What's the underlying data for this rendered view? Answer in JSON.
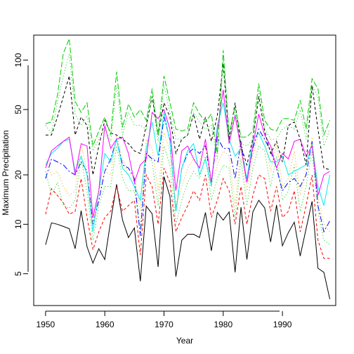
{
  "chart_data": {
    "type": "line",
    "title": "",
    "xlabel": "Year",
    "ylabel": "Maximum Precipitation",
    "y_scale": "log",
    "xlim": [
      1948,
      1999
    ],
    "ylim": [
      3.2,
      142
    ],
    "x_ticks": [
      1950,
      1960,
      1970,
      1980,
      1990
    ],
    "y_ticks": [
      5,
      10,
      20,
      50,
      100
    ],
    "grid": false,
    "legend": "none",
    "x": [
      1950,
      1951,
      1952,
      1953,
      1954,
      1955,
      1956,
      1957,
      1958,
      1959,
      1960,
      1961,
      1962,
      1963,
      1964,
      1965,
      1966,
      1967,
      1968,
      1969,
      1970,
      1971,
      1972,
      1973,
      1974,
      1975,
      1976,
      1977,
      1978,
      1979,
      1980,
      1981,
      1982,
      1983,
      1984,
      1985,
      1986,
      1987,
      1988,
      1989,
      1990,
      1991,
      1992,
      1993,
      1994,
      1995,
      1996,
      1997,
      1998
    ],
    "series": [
      {
        "color": "#000000",
        "dash": "solid",
        "values": [
          7.5,
          10.2,
          10.0,
          9.7,
          9.4,
          7.1,
          12.1,
          7.3,
          5.8,
          7.1,
          6.1,
          10.5,
          17.5,
          10.6,
          8.3,
          9.5,
          4.5,
          12.9,
          11.6,
          5.5,
          19.5,
          14.8,
          4.8,
          8.0,
          8.7,
          8.7,
          8.3,
          11.8,
          6.9,
          11.8,
          10.6,
          11.9,
          5.1,
          12.7,
          6.1,
          11.9,
          14.0,
          12.6,
          7.8,
          13.1,
          7.4,
          8.9,
          10.3,
          6.4,
          9.4,
          13.8,
          5.4,
          5.1,
          3.5
        ]
      },
      {
        "color": "#ff0000",
        "dash": "4 3",
        "values": [
          11.5,
          16.5,
          15.0,
          13.5,
          11.5,
          12.0,
          19.0,
          11.0,
          7.0,
          9.0,
          11.0,
          12.0,
          17.0,
          12.0,
          13.0,
          14.0,
          6.5,
          20.0,
          17.0,
          10.0,
          22.0,
          18.0,
          9.0,
          11.0,
          13.0,
          16.0,
          14.0,
          20.0,
          11.0,
          14.0,
          19.0,
          16.0,
          10.0,
          17.0,
          10.0,
          15.0,
          20.0,
          19.0,
          12.0,
          17.0,
          11.0,
          12.0,
          16.0,
          9.0,
          13.0,
          20.0,
          8.0,
          6.2,
          6.2
        ]
      },
      {
        "color": "#00cd00",
        "dash": "1 3",
        "values": [
          21.0,
          15.0,
          18.0,
          13.0,
          12.5,
          14.0,
          25.0,
          16.0,
          8.0,
          13.0,
          17.0,
          17.0,
          30.0,
          19.0,
          16.0,
          16.0,
          9.5,
          28.0,
          24.0,
          13.0,
          30.0,
          23.0,
          10.0,
          14.0,
          18.0,
          21.0,
          19.0,
          26.0,
          14.0,
          19.0,
          23.0,
          22.0,
          11.0,
          25.0,
          13.0,
          22.0,
          30.0,
          28.0,
          17.0,
          26.0,
          14.0,
          16.0,
          23.0,
          12.0,
          17.0,
          28.0,
          12.0,
          8.0,
          7.5
        ]
      },
      {
        "color": "#0000ff",
        "dash": "8 3 2 3",
        "values": [
          19.0,
          25.0,
          24.0,
          23.0,
          21.0,
          20.0,
          24.0,
          21.0,
          10.0,
          14.0,
          21.0,
          25.0,
          33.0,
          23.0,
          22.0,
          19.0,
          8.5,
          27.0,
          25.0,
          24.0,
          45.0,
          33.0,
          12.0,
          22.0,
          27.0,
          29.0,
          27.0,
          30.0,
          18.0,
          34.0,
          29.0,
          29.0,
          19.0,
          32.0,
          18.0,
          29.0,
          38.0,
          33.0,
          28.0,
          22.0,
          16.0,
          18.0,
          19.0,
          17.0,
          20.0,
          32.0,
          13.0,
          9.0,
          10.5
        ]
      },
      {
        "color": "#00eeee",
        "dash": "solid",
        "values": [
          23.0,
          27.0,
          29.0,
          32.0,
          33.0,
          21.0,
          26.0,
          20.0,
          9.0,
          16.0,
          27.0,
          24.0,
          33.0,
          22.0,
          20.0,
          17.0,
          14.0,
          29.0,
          42.0,
          26.0,
          48.0,
          32.0,
          12.0,
          22.0,
          28.0,
          31.0,
          20.0,
          25.0,
          17.0,
          40.0,
          55.0,
          33.0,
          26.0,
          29.0,
          19.0,
          33.0,
          36.0,
          30.0,
          24.0,
          24.0,
          26.0,
          20.0,
          21.0,
          22.0,
          23.0,
          31.0,
          17.0,
          13.0,
          20.0
        ]
      },
      {
        "color": "#ff00ff",
        "dash": "solid",
        "values": [
          22.0,
          28.0,
          30.0,
          32.0,
          34.0,
          20.0,
          31.0,
          30.0,
          11.0,
          16.0,
          40.0,
          29.0,
          33.0,
          34.0,
          27.0,
          18.0,
          23.0,
          25.0,
          48.0,
          44.0,
          50.0,
          38.0,
          16.0,
          28.0,
          30.0,
          25.0,
          22.0,
          33.0,
          18.0,
          37.0,
          66.0,
          31.0,
          46.0,
          29.0,
          18.0,
          30.0,
          47.0,
          35.0,
          30.0,
          22.0,
          27.0,
          25.0,
          32.0,
          33.0,
          26.0,
          30.0,
          15.0,
          20.0,
          21.0
        ]
      },
      {
        "color": "#ffa500",
        "dash": "1 3",
        "values": [
          25.0,
          20.0,
          21.0,
          17.0,
          15.0,
          16.0,
          31.0,
          21.0,
          10.0,
          16.0,
          21.0,
          20.0,
          35.0,
          25.0,
          20.0,
          20.0,
          12.0,
          33.0,
          29.0,
          16.0,
          36.0,
          28.0,
          13.0,
          17.0,
          22.0,
          25.0,
          24.0,
          31.0,
          17.0,
          23.0,
          28.0,
          26.0,
          13.0,
          30.0,
          16.0,
          26.0,
          36.0,
          33.0,
          21.0,
          31.0,
          17.0,
          19.0,
          28.0,
          15.0,
          21.0,
          34.0,
          15.0,
          10.0,
          9.0
        ]
      },
      {
        "color": "#000000",
        "dash": "4 3",
        "values": [
          35.0,
          35.0,
          45.0,
          60.0,
          80.0,
          35.0,
          45.0,
          40.0,
          20.0,
          30.0,
          43.0,
          36.0,
          35.0,
          33.0,
          31.0,
          28.0,
          27.0,
          40.0,
          60.0,
          35.0,
          55.0,
          45.0,
          27.0,
          33.0,
          35.0,
          47.0,
          33.0,
          45.0,
          32.0,
          46.0,
          95.0,
          33.0,
          55.0,
          30.0,
          23.0,
          33.0,
          60.0,
          37.0,
          27.0,
          32.0,
          24.0,
          40.0,
          42.0,
          33.0,
          23.0,
          70.0,
          38.0,
          22.0,
          21.5
        ]
      },
      {
        "color": "#00cd00",
        "dash": "8 3",
        "values": [
          41.0,
          42.0,
          61.0,
          110.0,
          135.0,
          56.0,
          48.0,
          55.0,
          30.0,
          37.0,
          45.0,
          35.0,
          85.0,
          39.0,
          54.0,
          45.0,
          50.0,
          43.0,
          67.0,
          35.0,
          80.0,
          55.0,
          38.0,
          37.0,
          38.0,
          55.0,
          47.0,
          42.0,
          47.0,
          27.0,
          115.0,
          35.0,
          52.0,
          34.0,
          34.0,
          37.0,
          72.0,
          43.0,
          38.0,
          37.0,
          44.0,
          44.0,
          43.0,
          57.0,
          38.0,
          77.0,
          67.0,
          35.0,
          43.0
        ]
      },
      {
        "color": "#00cd00",
        "dash": "1 3",
        "values": [
          40.0,
          36.0,
          55.0,
          80.0,
          110.0,
          47.0,
          40.0,
          46.0,
          28.0,
          33.0,
          38.0,
          32.0,
          70.0,
          35.0,
          48.0,
          40.0,
          40.0,
          38.0,
          60.0,
          32.0,
          70.0,
          48.0,
          33.0,
          33.0,
          35.0,
          48.0,
          42.0,
          38.0,
          40.0,
          25.0,
          100.0,
          32.0,
          48.0,
          31.0,
          30.0,
          33.0,
          65.0,
          38.0,
          33.0,
          33.0,
          38.0,
          40.0,
          38.0,
          50.0,
          33.0,
          70.0,
          60.0,
          30.0,
          38.0
        ]
      }
    ]
  }
}
